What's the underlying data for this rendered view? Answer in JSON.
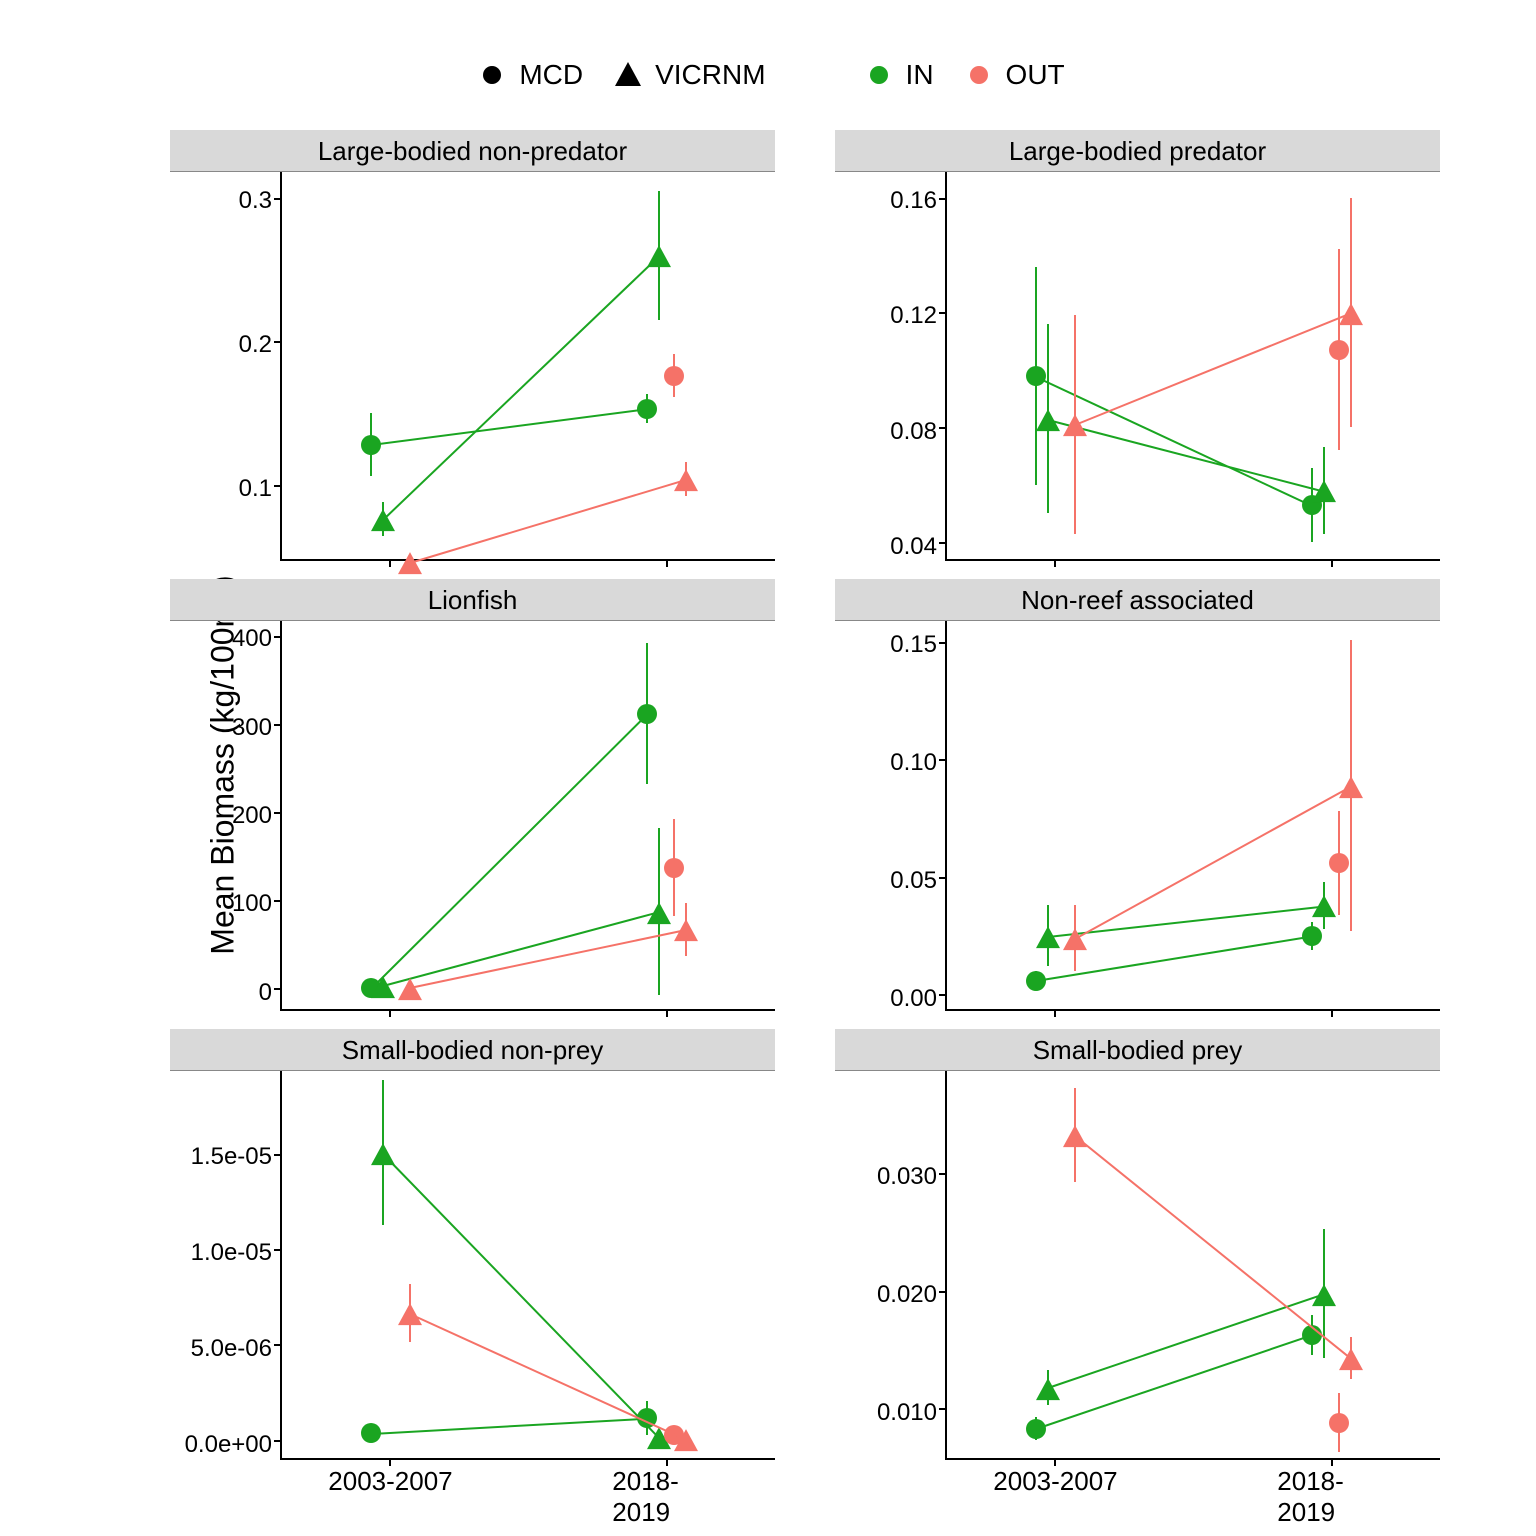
{
  "colors": {
    "in": "#1aa521",
    "out": "#f57268",
    "black": "#000000",
    "strip_bg": "#d9d9d9"
  },
  "markers": {
    "circle_diameter": 20,
    "triangle_base": 24,
    "triangle_height": 22,
    "error_bar_width": 2,
    "line_width": 2
  },
  "typography": {
    "legend_fontsize": 28,
    "strip_fontsize": 26,
    "tick_fontsize": 24,
    "xlabel_fontsize": 26,
    "ylabel_fontsize": 32
  },
  "legend": {
    "shape_items": [
      {
        "shape": "circle",
        "label": "MCD"
      },
      {
        "shape": "triangle",
        "label": "VICRNM"
      }
    ],
    "color_items": [
      {
        "color_key": "in",
        "label": "IN"
      },
      {
        "color_key": "out",
        "label": "OUT"
      }
    ]
  },
  "y_axis_label_html": "Mean Biomass (kg/100m<sup>2</sup>)",
  "x_categories": [
    "2003-2007",
    "2018-2019"
  ],
  "x_positions": [
    0.22,
    0.78
  ],
  "series_def": [
    {
      "key": "mcd_in",
      "shape": "circle",
      "color_key": "in",
      "dodge": -0.04
    },
    {
      "key": "vicrnm_in",
      "shape": "triangle",
      "color_key": "in",
      "dodge": -0.015
    },
    {
      "key": "mcd_out",
      "shape": "circle",
      "color_key": "out",
      "dodge": 0.015
    },
    {
      "key": "vicrnm_out",
      "shape": "triangle",
      "color_key": "out",
      "dodge": 0.04
    }
  ],
  "panels": [
    {
      "title": "Large-bodied non-predator",
      "ylim": [
        0.05,
        0.32
      ],
      "yticks": [
        0.1,
        0.2,
        0.3
      ],
      "yticklabels": [
        "0.1",
        "0.2",
        "0.3"
      ],
      "show_xlabels": false,
      "series": {
        "mcd_in": {
          "values": [
            0.13,
            0.155
          ],
          "err": [
            0.022,
            0.01
          ],
          "draw0": true
        },
        "vicrnm_in": {
          "values": [
            0.078,
            0.262
          ],
          "err": [
            0.012,
            0.045
          ],
          "draw0": true
        },
        "mcd_out": {
          "values": [
            null,
            0.178
          ],
          "err": [
            null,
            0.015
          ],
          "draw0": false
        },
        "vicrnm_out": {
          "values": [
            0.048,
            0.106
          ],
          "err": [
            0.006,
            0.012
          ],
          "draw0": true
        }
      }
    },
    {
      "title": "Large-bodied predator",
      "ylim": [
        0.035,
        0.17
      ],
      "yticks": [
        0.04,
        0.08,
        0.12,
        0.16
      ],
      "yticklabels": [
        "0.04",
        "0.08",
        "0.12",
        "0.16"
      ],
      "show_xlabels": false,
      "series": {
        "mcd_in": {
          "values": [
            0.099,
            0.054
          ],
          "err": [
            0.038,
            0.013
          ],
          "draw0": true
        },
        "vicrnm_in": {
          "values": [
            0.084,
            0.059
          ],
          "err": [
            0.033,
            0.015
          ],
          "draw0": true
        },
        "mcd_out": {
          "values": [
            null,
            0.108
          ],
          "err": [
            null,
            0.035
          ],
          "draw0": false
        },
        "vicrnm_out": {
          "values": [
            0.082,
            0.121
          ],
          "err": [
            0.038,
            0.04
          ],
          "draw0": true
        }
      }
    },
    {
      "title": "Lionfish",
      "ylim": [
        -20,
        420
      ],
      "yticks": [
        0,
        100,
        200,
        300,
        400
      ],
      "yticklabels": [
        "0",
        "100",
        "200",
        "300",
        "400"
      ],
      "show_xlabels": false,
      "series": {
        "mcd_in": {
          "values": [
            3,
            315
          ],
          "err": [
            3,
            80
          ],
          "draw0": true
        },
        "vicrnm_in": {
          "values": [
            6,
            90
          ],
          "err": [
            4,
            95
          ],
          "draw0": true
        },
        "mcd_out": {
          "values": [
            null,
            140
          ],
          "err": [
            null,
            55
          ],
          "draw0": false
        },
        "vicrnm_out": {
          "values": [
            4,
            70
          ],
          "err": [
            3,
            30
          ],
          "draw0": true
        }
      }
    },
    {
      "title": "Non-reef associated",
      "ylim": [
        -0.005,
        0.16
      ],
      "yticks": [
        0.0,
        0.05,
        0.1,
        0.15
      ],
      "yticklabels": [
        "0.00",
        "0.05",
        "0.10",
        "0.15"
      ],
      "show_xlabels": false,
      "series": {
        "mcd_in": {
          "values": [
            0.007,
            0.026
          ],
          "err": [
            0.004,
            0.006
          ],
          "draw0": true
        },
        "vicrnm_in": {
          "values": [
            0.026,
            0.039
          ],
          "err": [
            0.013,
            0.01
          ],
          "draw0": true
        },
        "mcd_out": {
          "values": [
            null,
            0.057
          ],
          "err": [
            null,
            0.022
          ],
          "draw0": false
        },
        "vicrnm_out": {
          "values": [
            0.025,
            0.09
          ],
          "err": [
            0.014,
            0.062
          ],
          "draw0": true
        }
      }
    },
    {
      "title": "Small-bodied non-prey",
      "ylim": [
        -8e-07,
        1.95e-05
      ],
      "yticks": [
        0,
        5e-06,
        1e-05,
        1.5e-05
      ],
      "yticklabels": [
        "0.0e+00",
        "5.0e-06",
        "1.0e-05",
        "1.5e-05"
      ],
      "show_xlabels": true,
      "series": {
        "mcd_in": {
          "values": [
            5e-07,
            1.3e-06
          ],
          "err": [
            3e-07,
            9e-07
          ],
          "draw0": true
        },
        "vicrnm_in": {
          "values": [
            1.52e-05,
            3e-07
          ],
          "err": [
            3.8e-06,
            2e-07
          ],
          "draw0": true
        },
        "mcd_out": {
          "values": [
            null,
            4e-07
          ],
          "err": [
            null,
            2e-07
          ],
          "draw0": false
        },
        "vicrnm_out": {
          "values": [
            6.8e-06,
            2e-07
          ],
          "err": [
            1.5e-06,
            1e-07
          ],
          "draw0": true
        }
      }
    },
    {
      "title": "Small-bodied prey",
      "ylim": [
        0.006,
        0.039
      ],
      "yticks": [
        0.01,
        0.02,
        0.03
      ],
      "yticklabels": [
        "0.010",
        "0.020",
        "0.030"
      ],
      "show_xlabels": true,
      "series": {
        "mcd_in": {
          "values": [
            0.0085,
            0.0165
          ],
          "err": [
            0.001,
            0.0017
          ],
          "draw0": true
        },
        "vicrnm_in": {
          "values": [
            0.012,
            0.02
          ],
          "err": [
            0.0015,
            0.0055
          ],
          "draw0": true
        },
        "mcd_out": {
          "values": [
            null,
            0.009
          ],
          "err": [
            null,
            0.0025
          ],
          "draw0": false
        },
        "vicrnm_out": {
          "values": [
            0.0335,
            0.0145
          ],
          "err": [
            0.004,
            0.0018
          ],
          "draw0": true
        }
      }
    }
  ]
}
